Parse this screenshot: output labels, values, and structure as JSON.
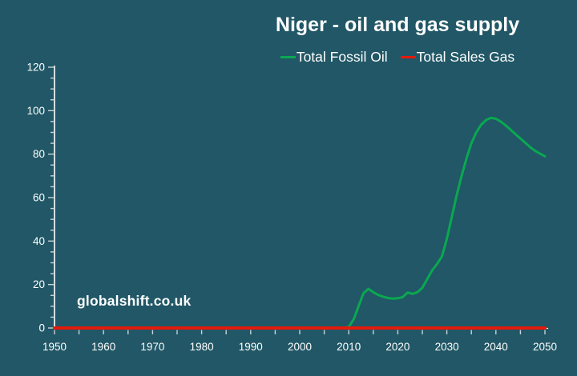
{
  "page": {
    "watermark": "globalshift.co.uk"
  },
  "colors": {
    "background": "#215766",
    "text": "#ffffff",
    "axis_line": "#ffffff",
    "tick": "#c7d4d8",
    "oil_green": "#0aa850",
    "gas_red": "#e41a0d"
  },
  "chart_data": {
    "type": "line",
    "title": "Niger - oil and gas supply",
    "xlabel": "",
    "ylabel": "",
    "xlim": [
      1950,
      2050
    ],
    "ylim": [
      0,
      120
    ],
    "grid": false,
    "legend_position": "top",
    "x_ticks": [
      1950,
      1960,
      1970,
      1980,
      1990,
      2000,
      2010,
      2020,
      2030,
      2040,
      2050
    ],
    "x_minor_tick_step": 5,
    "y_ticks": [
      0,
      20,
      40,
      60,
      80,
      100,
      120
    ],
    "y_minor_tick_step": 5,
    "series": [
      {
        "name": "Total Fossil Oil",
        "color": "#0aa850",
        "stroke_width": 3,
        "points": [
          [
            1950,
            0
          ],
          [
            2009,
            0
          ],
          [
            2010,
            0.5
          ],
          [
            2011,
            4
          ],
          [
            2012,
            10
          ],
          [
            2013,
            16
          ],
          [
            2014,
            18
          ],
          [
            2015,
            16.5
          ],
          [
            2016,
            15.2
          ],
          [
            2017,
            14.4
          ],
          [
            2018,
            13.8
          ],
          [
            2019,
            13.5
          ],
          [
            2020,
            13.7
          ],
          [
            2021,
            14.2
          ],
          [
            2022,
            16.3
          ],
          [
            2023,
            15.7
          ],
          [
            2024,
            16.5
          ],
          [
            2025,
            18.5
          ],
          [
            2026,
            22.5
          ],
          [
            2027,
            26.5
          ],
          [
            2028,
            29.5
          ],
          [
            2029,
            33
          ],
          [
            2030,
            41
          ],
          [
            2031,
            51
          ],
          [
            2032,
            61
          ],
          [
            2033,
            70
          ],
          [
            2034,
            78
          ],
          [
            2035,
            85
          ],
          [
            2036,
            90
          ],
          [
            2037,
            93.5
          ],
          [
            2038,
            95.7
          ],
          [
            2039,
            96.7
          ],
          [
            2040,
            96.3
          ],
          [
            2041,
            95
          ],
          [
            2042,
            93.2
          ],
          [
            2043,
            91.2
          ],
          [
            2044,
            89.2
          ],
          [
            2045,
            87.2
          ],
          [
            2046,
            85.2
          ],
          [
            2047,
            83.2
          ],
          [
            2048,
            81.5
          ],
          [
            2049,
            80.2
          ],
          [
            2050,
            79
          ]
        ]
      },
      {
        "name": "Total Sales Gas",
        "color": "#e41a0d",
        "stroke_width": 4,
        "points": [
          [
            1950,
            0
          ],
          [
            2050,
            0
          ]
        ]
      }
    ]
  }
}
